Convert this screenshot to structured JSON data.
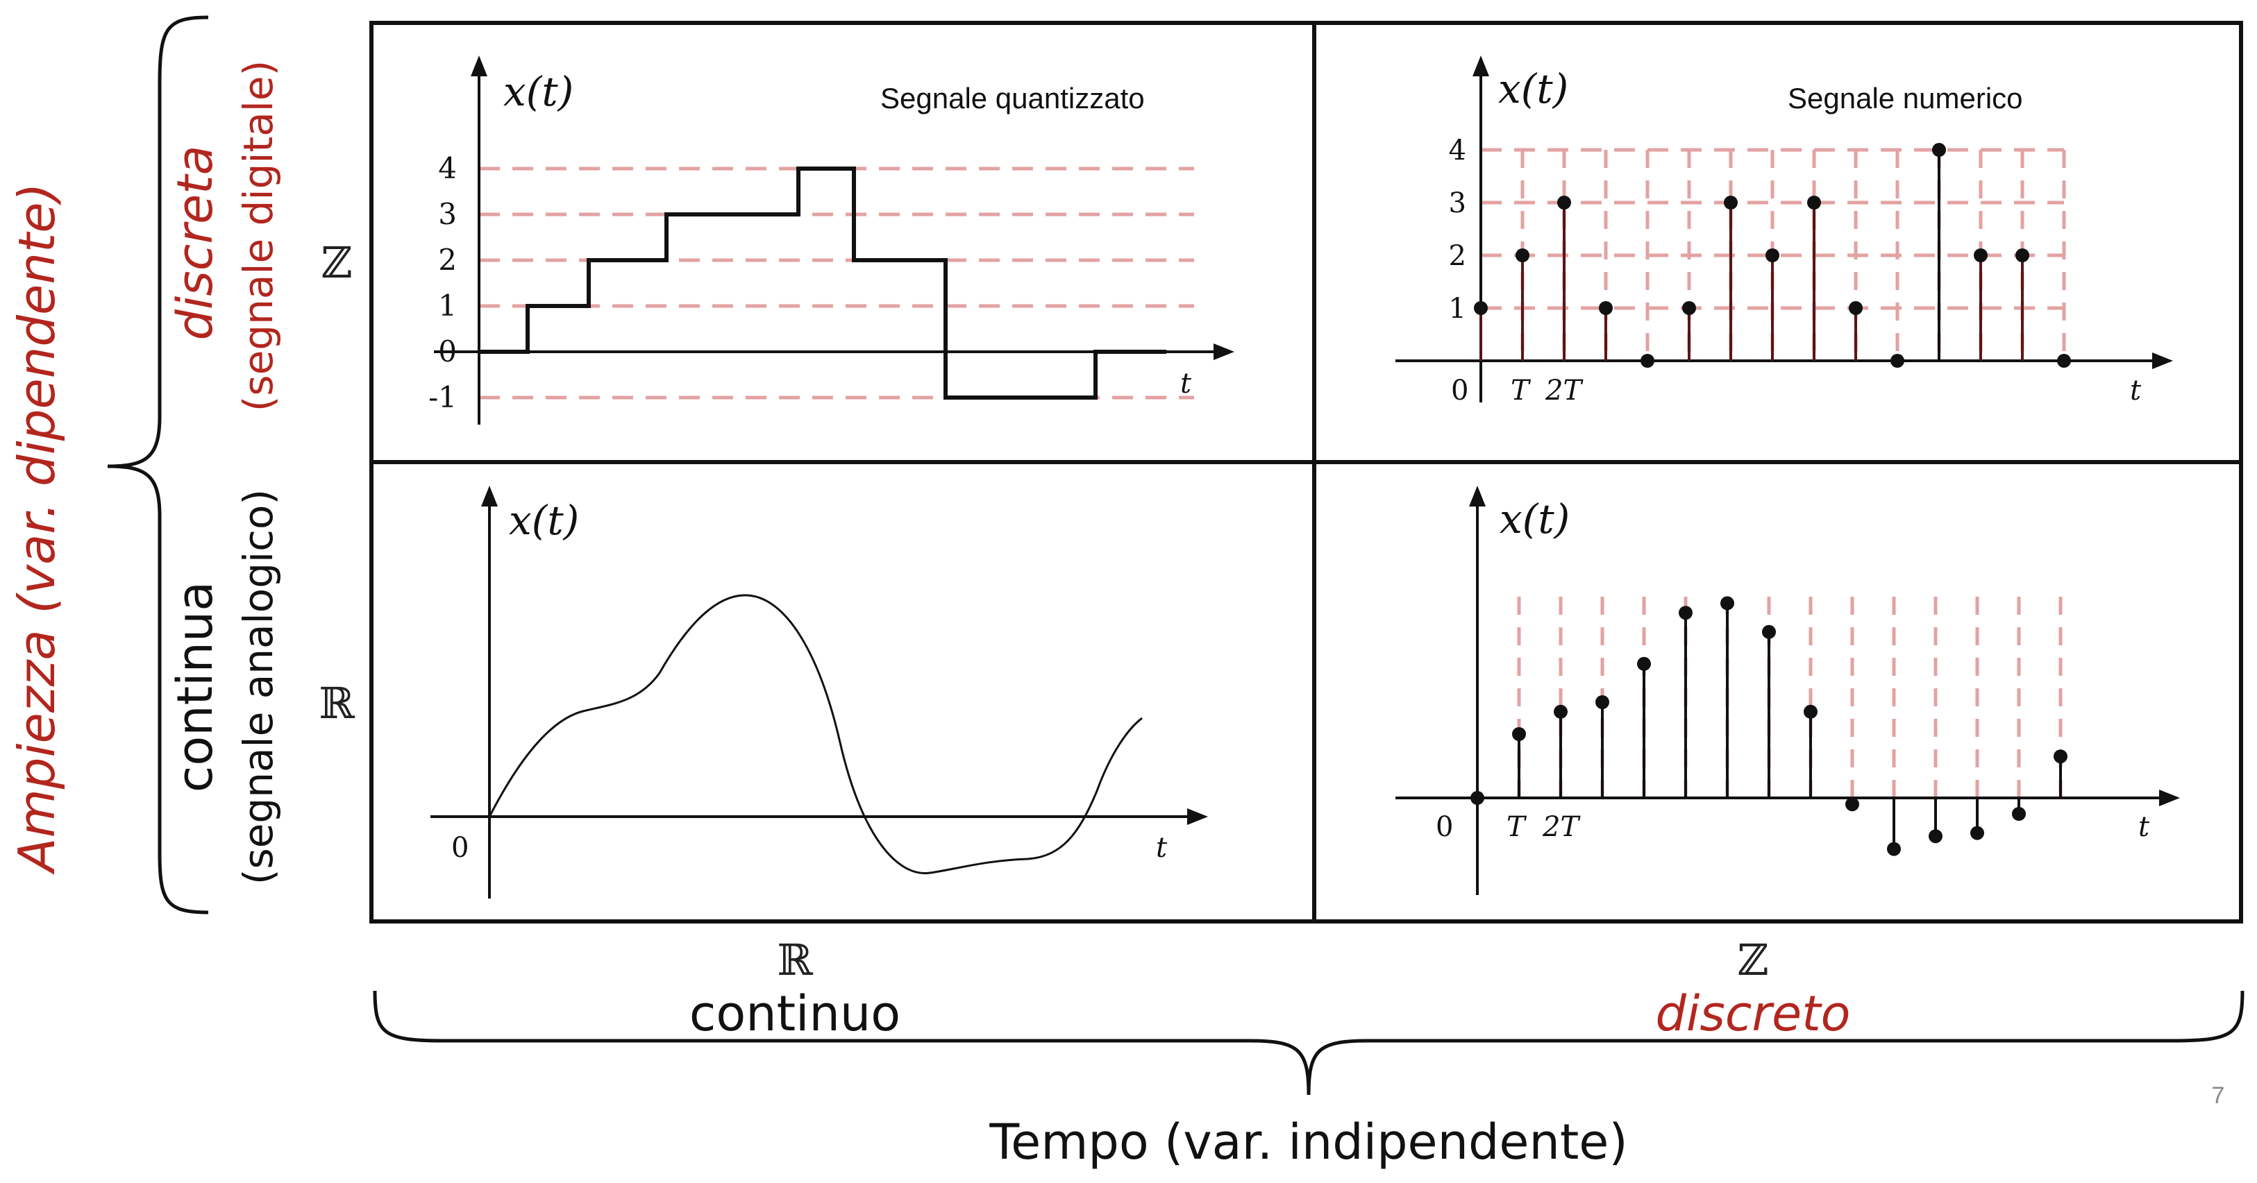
{
  "colors": {
    "accent_red": "#b2261e",
    "grid_pink": "#e3a2a2",
    "stem_dark": "#5a1515",
    "ink": "#111111"
  },
  "ylabel_outer": "Ampiezza (var. dipendente)",
  "row_top": {
    "title": "discreta",
    "subtitle": "(segnale digitale)",
    "set": "ℤ"
  },
  "row_bottom": {
    "title": "continua",
    "subtitle": "(segnale analogico)",
    "set": "ℝ"
  },
  "col_left": {
    "set": "ℝ",
    "label": "continuo"
  },
  "col_right": {
    "set": "ℤ",
    "label": "discreto"
  },
  "xlabel_outer": "Tempo (var. indipendente)",
  "page_number": "7",
  "panels": {
    "quantized": {
      "title": "Segnale quantizzato",
      "ylabel": "x(t)",
      "xlabel": "t"
    },
    "numeric": {
      "title": "Segnale numerico",
      "ylabel": "x(t)",
      "xlabel": "t",
      "origin": "0",
      "tick_T": "T",
      "tick_2T": "2T"
    },
    "analog": {
      "ylabel": "x(t)",
      "xlabel": "t",
      "origin": "0"
    },
    "sampled": {
      "ylabel": "x(t)",
      "xlabel": "t",
      "origin": "0",
      "tick_T": "T",
      "tick_2T": "2T"
    }
  },
  "chart_data": [
    {
      "id": "quantized",
      "type": "line",
      "title": "Segnale quantizzato",
      "step": true,
      "y_ticks": [
        "-1",
        "0",
        "1",
        "2",
        "3",
        "4"
      ],
      "levels": [
        0,
        1,
        2,
        3,
        4,
        2,
        -1,
        0
      ]
    },
    {
      "id": "numeric",
      "type": "scatter",
      "title": "Segnale numerico",
      "y_ticks": [
        "1",
        "2",
        "3",
        "4"
      ],
      "values": [
        1,
        2,
        3,
        1,
        0,
        1,
        3,
        2,
        3,
        1,
        0,
        4,
        2,
        2,
        0
      ]
    },
    {
      "id": "analog",
      "type": "line",
      "curve": "continuous"
    },
    {
      "id": "sampled",
      "type": "scatter",
      "values": [
        0,
        0.2,
        0.27,
        0.3,
        0.42,
        0.58,
        0.61,
        0.52,
        0.27,
        -0.02,
        -0.16,
        -0.12,
        -0.11,
        -0.05,
        0.13
      ]
    }
  ]
}
